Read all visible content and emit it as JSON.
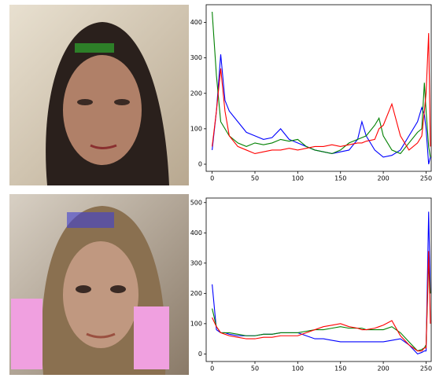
{
  "chart_data": [
    {
      "type": "line",
      "x": [
        0,
        5,
        10,
        15,
        20,
        30,
        40,
        50,
        60,
        70,
        80,
        90,
        100,
        110,
        120,
        130,
        140,
        150,
        160,
        170,
        175,
        180,
        190,
        195,
        200,
        210,
        220,
        230,
        240,
        245,
        248,
        250,
        253,
        255
      ],
      "series": [
        {
          "color": "#0000ff",
          "values": [
            40,
            150,
            310,
            180,
            150,
            120,
            90,
            80,
            70,
            75,
            100,
            70,
            60,
            50,
            40,
            35,
            30,
            35,
            40,
            70,
            120,
            80,
            40,
            30,
            20,
            25,
            40,
            80,
            120,
            160,
            140,
            100,
            0,
            20
          ]
        },
        {
          "color": "#008000",
          "values": [
            430,
            250,
            120,
            100,
            80,
            60,
            50,
            60,
            55,
            60,
            70,
            65,
            70,
            50,
            40,
            35,
            30,
            40,
            60,
            70,
            75,
            80,
            110,
            130,
            80,
            40,
            30,
            60,
            90,
            100,
            230,
            150,
            50,
            20
          ]
        },
        {
          "color": "#ff0000",
          "values": [
            50,
            150,
            270,
            150,
            80,
            50,
            40,
            30,
            35,
            40,
            40,
            45,
            40,
            45,
            50,
            50,
            55,
            50,
            55,
            60,
            60,
            65,
            70,
            100,
            110,
            170,
            80,
            40,
            60,
            80,
            150,
            200,
            370,
            50
          ]
        }
      ],
      "xlim": [
        -7,
        256
      ],
      "ylim": [
        -20,
        450
      ],
      "xticks": [
        0,
        50,
        100,
        150,
        200,
        250
      ],
      "yticks": [
        0,
        100,
        200,
        300,
        400
      ]
    },
    {
      "type": "line",
      "x": [
        0,
        5,
        10,
        15,
        20,
        30,
        40,
        50,
        60,
        70,
        80,
        90,
        100,
        110,
        120,
        130,
        140,
        150,
        160,
        170,
        175,
        180,
        190,
        195,
        200,
        210,
        220,
        230,
        240,
        245,
        248,
        250,
        253,
        255
      ],
      "series": [
        {
          "color": "#0000ff",
          "values": [
            230,
            80,
            70,
            70,
            65,
            60,
            60,
            60,
            65,
            65,
            70,
            70,
            70,
            60,
            50,
            50,
            45,
            40,
            40,
            40,
            40,
            40,
            40,
            40,
            40,
            45,
            50,
            30,
            0,
            5,
            10,
            10,
            470,
            200
          ]
        },
        {
          "color": "#008000",
          "values": [
            150,
            90,
            70,
            70,
            70,
            65,
            60,
            60,
            65,
            65,
            70,
            70,
            70,
            75,
            80,
            80,
            85,
            90,
            85,
            85,
            85,
            80,
            80,
            80,
            80,
            90,
            70,
            40,
            10,
            15,
            20,
            30,
            300,
            200
          ]
        },
        {
          "color": "#ff0000",
          "values": [
            120,
            90,
            70,
            65,
            60,
            55,
            50,
            50,
            55,
            55,
            60,
            60,
            60,
            70,
            80,
            90,
            95,
            100,
            90,
            85,
            80,
            80,
            85,
            90,
            95,
            110,
            60,
            30,
            10,
            10,
            20,
            20,
            340,
            100
          ]
        }
      ],
      "xlim": [
        -7,
        256
      ],
      "ylim": [
        -25,
        515
      ],
      "xticks": [
        0,
        50,
        100,
        150,
        200,
        250
      ],
      "yticks": [
        0,
        100,
        200,
        300,
        400,
        500
      ]
    }
  ]
}
